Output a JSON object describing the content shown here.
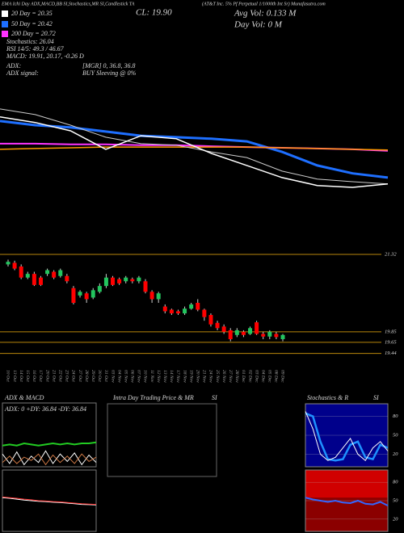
{
  "header": {
    "top": "EMA Ichi Day ADX,MACD,BB SI,Stochastics,MR SI,Candlestick TA",
    "name": "(AT&T Inc. 5% Pf Perpetual 1/1000th Int Sr) Munafasutra.com",
    "ema20": "20  Day = 20.35",
    "close": "CL: 19.90",
    "avg_vol": "Avg Vol: 0.133  M",
    "ema50": "50  Day = 20.42",
    "day_vol": "Day Vol: 0  M",
    "ema200": "200  Day = 20.72",
    "stoch": "Stochastics: 26.04",
    "rsi": "RSI 14/5: 49.3 / 46.67",
    "macd": "MACD: 19.91, 20.17, -0.26  D",
    "adx": "ADX:",
    "adx_val": "[MGR] 0, 36.8, 36.8",
    "adx_sig": "ADX  signal:",
    "adx_sig_val": "BUY Sleeving @ 0%"
  },
  "chart_data": [
    {
      "type": "candlestick",
      "up_color": "#22c55e",
      "down_color": "#ff0000",
      "level_color": "#b8860b",
      "categories": [
        "10 Oct",
        "13 Oct",
        "14 Oct",
        "15 Oct",
        "16 Oct",
        "17 Oct",
        "20 Oct",
        "21 Oct",
        "22 Oct",
        "23 Oct",
        "24 Oct",
        "27 Oct",
        "28 Oct",
        "29 Oct",
        "30 Oct",
        "31 Oct",
        "03 Nov",
        "04 Nov",
        "05 Nov",
        "06 Nov",
        "07 Nov",
        "10 Nov",
        "11 Nov",
        "12 Nov",
        "13 Nov",
        "14 Nov",
        "17 Nov",
        "18 Nov",
        "19 Nov",
        "20 Nov",
        "21 Nov",
        "24 Nov",
        "25 Nov",
        "26 Nov",
        "27 Nov",
        "28 Nov",
        "01 Dec",
        "02 Dec",
        "03 Dec",
        "04 Dec",
        "05 Dec",
        "08 Dec",
        "09 Dec"
      ],
      "open": [
        21.13,
        21.16,
        21.09,
        20.88,
        20.95,
        20.88,
        20.95,
        20.99,
        20.91,
        20.91,
        20.68,
        20.54,
        20.58,
        20.5,
        20.61,
        20.72,
        20.88,
        20.85,
        20.81,
        20.85,
        20.81,
        20.81,
        20.61,
        20.47,
        20.33,
        20.27,
        20.24,
        20.2,
        20.29,
        20.4,
        20.27,
        20.17,
        20.02,
        19.95,
        19.88,
        19.79,
        19.85,
        19.81,
        20.03,
        19.81,
        19.76,
        19.81,
        19.71
      ],
      "high": [
        21.22,
        21.2,
        21.13,
        20.99,
        20.99,
        20.91,
        21.05,
        21.02,
        21.05,
        20.95,
        20.72,
        20.64,
        20.61,
        20.68,
        20.77,
        20.95,
        20.91,
        20.88,
        20.91,
        20.88,
        20.91,
        20.85,
        20.64,
        20.61,
        20.37,
        20.29,
        20.27,
        20.33,
        20.4,
        20.47,
        20.29,
        20.2,
        20.06,
        19.99,
        19.92,
        19.92,
        19.88,
        19.95,
        20.06,
        19.85,
        19.88,
        19.85,
        19.81
      ],
      "low": [
        21.09,
        21.02,
        20.85,
        20.85,
        20.72,
        20.72,
        20.91,
        20.85,
        20.88,
        20.77,
        20.37,
        20.5,
        20.4,
        20.47,
        20.58,
        20.68,
        20.72,
        20.74,
        20.77,
        20.77,
        20.77,
        20.58,
        20.4,
        20.4,
        20.2,
        20.17,
        20.17,
        20.17,
        20.27,
        20.24,
        20.06,
        19.95,
        19.88,
        19.81,
        19.67,
        19.75,
        19.75,
        19.79,
        19.79,
        19.71,
        19.71,
        19.71,
        19.67
      ],
      "close": [
        21.18,
        21.05,
        20.88,
        20.95,
        20.74,
        20.74,
        21.02,
        20.88,
        21.02,
        20.81,
        20.4,
        20.61,
        20.47,
        20.64,
        20.72,
        20.88,
        20.74,
        20.77,
        20.88,
        20.81,
        20.88,
        20.61,
        20.47,
        20.58,
        20.24,
        20.2,
        20.2,
        20.29,
        20.37,
        20.27,
        20.13,
        19.99,
        19.92,
        19.85,
        19.71,
        19.88,
        19.79,
        19.92,
        19.81,
        19.76,
        19.85,
        19.75,
        19.79
      ],
      "ylim": [
        19.25,
        21.55
      ],
      "yticks": [
        21.32,
        19.85,
        19.65,
        19.44
      ]
    },
    {
      "type": "line",
      "ylim": [
        19,
        22
      ],
      "series": [
        {
          "color": "#1e6fff",
          "width": 3,
          "values": [
            21.36,
            21.25,
            21.19,
            21.08,
            20.97,
            20.93,
            20.89,
            20.82,
            20.54,
            20.18,
            19.97,
            19.86
          ]
        },
        {
          "color": "#ff33ff",
          "width": 2,
          "values": [
            20.76,
            20.76,
            20.74,
            20.74,
            20.72,
            20.72,
            20.69,
            20.67,
            20.65,
            20.63,
            20.61,
            20.57
          ]
        },
        {
          "color": "#ff9900",
          "width": 1.5,
          "values": [
            20.61,
            20.63,
            20.65,
            20.67,
            20.67,
            20.67,
            20.67,
            20.67,
            20.65,
            20.63,
            20.61,
            20.59
          ]
        },
        {
          "color": "#cccccc",
          "width": 1,
          "values": [
            21.68,
            21.53,
            21.25,
            20.93,
            20.76,
            20.72,
            20.54,
            20.39,
            20.03,
            19.82,
            19.75,
            19.69
          ]
        },
        {
          "color": "#ffffff",
          "width": 1.5,
          "values": [
            21.47,
            21.32,
            21.1,
            20.61,
            20.97,
            20.89,
            20.5,
            20.18,
            19.86,
            19.65,
            19.6,
            19.69
          ]
        }
      ]
    },
    {
      "type": "line",
      "title": "ADX  & MACD",
      "subtitle": "ADX: 0  +DY: 36.84  -DY: 36.84",
      "ylim": [
        0,
        60
      ],
      "series": [
        {
          "color": "#22cc22",
          "width": 2,
          "values": [
            20,
            21,
            20,
            22,
            21,
            20,
            21,
            22,
            21,
            22,
            21,
            22,
            22,
            23
          ]
        },
        {
          "color": "#ffffff",
          "width": 1,
          "values": [
            12,
            3,
            14,
            2,
            10,
            4,
            15,
            3,
            12,
            5,
            13,
            2,
            11,
            4
          ]
        },
        {
          "color": "#cc7744",
          "width": 1,
          "values": [
            4,
            10,
            3,
            9,
            6,
            12,
            2,
            11,
            4,
            10,
            3,
            12,
            5,
            9
          ]
        }
      ]
    },
    {
      "type": "line",
      "ylim": [
        -1,
        1
      ],
      "series": [
        {
          "color": "#ffffff",
          "width": 1,
          "values": [
            0.1,
            0.08,
            0.05,
            0.02,
            0,
            -0.02,
            -0.03,
            -0.05,
            -0.06,
            -0.08,
            -0.1,
            -0.12,
            -0.13,
            -0.14
          ]
        },
        {
          "color": "#ff3333",
          "width": 1,
          "values": [
            0.12,
            0.1,
            0.08,
            0.05,
            0.03,
            0,
            -0.01,
            -0.03,
            -0.04,
            -0.06,
            -0.08,
            -0.1,
            -0.11,
            -0.12
          ]
        }
      ]
    },
    {
      "type": "line",
      "title": "Intra Day Trading Price  & MR",
      "subtitle": "SI",
      "series": []
    },
    {
      "type": "line",
      "title": "Stochastics & R",
      "subtitle": "SI",
      "ylim": [
        0,
        100
      ],
      "yticks": [
        20,
        50,
        80
      ],
      "series": [
        {
          "color": "#1e90ff",
          "width": 2.5,
          "values": [
            85,
            80,
            40,
            12,
            10,
            12,
            35,
            40,
            15,
            12,
            35,
            30
          ]
        },
        {
          "color": "#ffffff",
          "width": 1,
          "values": [
            88,
            60,
            20,
            10,
            15,
            30,
            45,
            20,
            10,
            30,
            40,
            25
          ]
        }
      ]
    },
    {
      "type": "line",
      "ylim": [
        0,
        100
      ],
      "yticks": [
        20,
        50,
        80
      ],
      "series": [
        {
          "color": "#3366ff",
          "width": 2,
          "values": [
            55,
            52,
            50,
            48,
            50,
            47,
            46,
            50,
            45,
            44,
            48,
            42
          ]
        }
      ]
    }
  ]
}
